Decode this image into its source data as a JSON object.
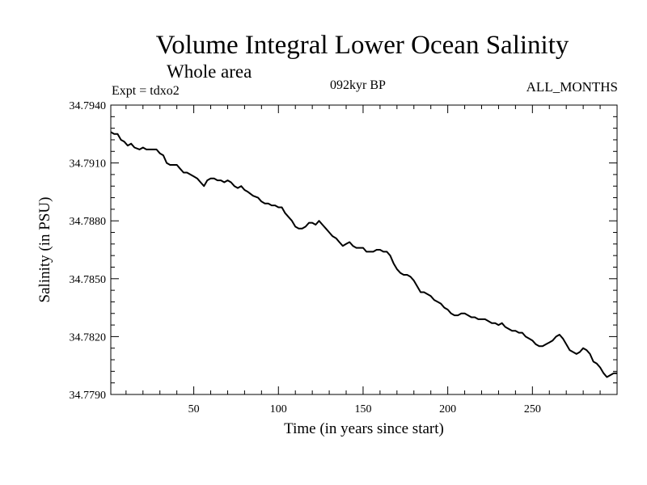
{
  "header": {
    "title": "Volume Integral Lower Ocean Salinity",
    "subtitle": "Whole area",
    "experiment": "Expt = tdxo2",
    "period": "092kyr BP",
    "months": "ALL_MONTHS"
  },
  "chart_data": {
    "type": "line",
    "xlabel": "Time (in years since start)",
    "ylabel": "Salinity (in PSU)",
    "xlim": [
      1,
      300
    ],
    "ylim": [
      34.779,
      34.794
    ],
    "x_ticks": [
      50,
      100,
      150,
      200,
      250
    ],
    "y_ticks": [
      "34.7790",
      "34.7820",
      "34.7850",
      "34.7880",
      "34.7910",
      "34.7940"
    ],
    "grid": false,
    "series": [
      {
        "x": [
          1,
          3,
          5,
          7,
          9,
          11,
          13,
          15,
          18,
          20,
          22,
          25,
          28,
          30,
          32,
          34,
          36,
          38,
          40,
          42,
          44,
          46,
          48,
          50,
          52,
          54,
          56,
          58,
          60,
          62,
          64,
          66,
          68,
          70,
          72,
          74,
          76,
          78,
          80,
          82,
          85,
          88,
          90,
          92,
          94,
          96,
          98,
          100,
          102,
          104,
          106,
          108,
          110,
          112,
          114,
          116,
          118,
          120,
          122,
          124,
          126,
          128,
          130,
          132,
          134,
          136,
          138,
          140,
          142,
          144,
          146,
          148,
          150,
          152,
          154,
          156,
          158,
          160,
          162,
          164,
          166,
          168,
          170,
          172,
          174,
          176,
          178,
          180,
          182,
          184,
          186,
          188,
          190,
          192,
          194,
          196,
          198,
          200,
          202,
          204,
          206,
          208,
          210,
          212,
          214,
          216,
          218,
          220,
          222,
          224,
          226,
          228,
          230,
          232,
          234,
          236,
          238,
          240,
          242,
          244,
          246,
          248,
          250,
          252,
          254,
          256,
          258,
          260,
          262,
          264,
          266,
          268,
          270,
          272,
          274,
          276,
          278,
          280,
          282,
          284,
          286,
          288,
          290,
          292,
          294,
          296,
          298,
          300
        ],
        "y": [
          34.7926,
          34.7925,
          34.7925,
          34.7922,
          34.7921,
          34.7919,
          34.792,
          34.7918,
          34.7917,
          34.7918,
          34.7917,
          34.7917,
          34.7917,
          34.7915,
          34.7914,
          34.791,
          34.7909,
          34.7909,
          34.7909,
          34.7907,
          34.7905,
          34.7905,
          34.7904,
          34.7903,
          34.7902,
          34.79,
          34.7898,
          34.7901,
          34.7902,
          34.7902,
          34.7901,
          34.7901,
          34.79,
          34.7901,
          34.79,
          34.7898,
          34.7897,
          34.7898,
          34.7896,
          34.7895,
          34.7893,
          34.7892,
          34.789,
          34.7889,
          34.7889,
          34.7888,
          34.7888,
          34.7887,
          34.7887,
          34.7884,
          34.7882,
          34.788,
          34.7877,
          34.7876,
          34.7876,
          34.7877,
          34.7879,
          34.7879,
          34.7878,
          34.788,
          34.7878,
          34.7876,
          34.7874,
          34.7872,
          34.7871,
          34.7869,
          34.7867,
          34.7868,
          34.7869,
          34.7867,
          34.7866,
          34.7866,
          34.7866,
          34.7864,
          34.7864,
          34.7864,
          34.7865,
          34.7865,
          34.7864,
          34.7864,
          34.7862,
          34.7858,
          34.7855,
          34.7853,
          34.7852,
          34.7852,
          34.7851,
          34.7849,
          34.7846,
          34.7843,
          34.7843,
          34.7842,
          34.7841,
          34.7839,
          34.7838,
          34.7837,
          34.7835,
          34.7834,
          34.7832,
          34.7831,
          34.7831,
          34.7832,
          34.7832,
          34.7831,
          34.783,
          34.783,
          34.7829,
          34.7829,
          34.7829,
          34.7828,
          34.7827,
          34.7827,
          34.7826,
          34.7827,
          34.7825,
          34.7824,
          34.7823,
          34.7823,
          34.7822,
          34.7822,
          34.782,
          34.7819,
          34.7818,
          34.7816,
          34.7815,
          34.7815,
          34.7816,
          34.7817,
          34.7818,
          34.782,
          34.7821,
          34.7819,
          34.7816,
          34.7813,
          34.7812,
          34.7811,
          34.7812,
          34.7814,
          34.7813,
          34.7811,
          34.7807,
          34.7806,
          34.7804,
          34.7801,
          34.7799,
          34.78,
          34.7801,
          34.7801
        ]
      }
    ]
  }
}
